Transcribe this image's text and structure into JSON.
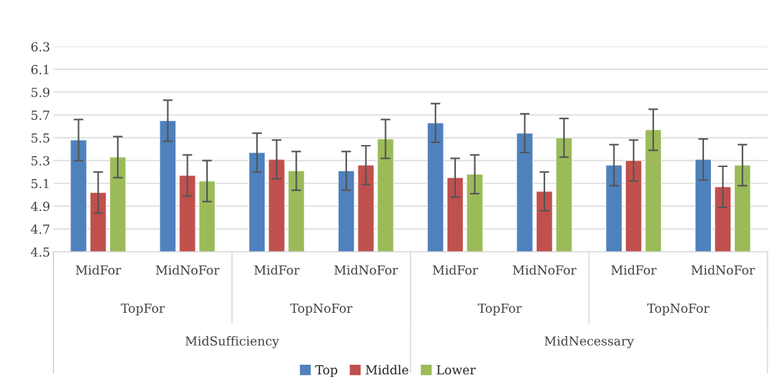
{
  "chart_data": {
    "type": "bar",
    "categories": [
      "MidFor",
      "MidNoFor",
      "MidFor",
      "MidNoFor",
      "MidFor",
      "MidNoFor",
      "MidFor",
      "MidNoFor"
    ],
    "series": [
      {
        "name": "Top",
        "color": "#4f81bd",
        "values": [
          5.48,
          5.65,
          5.37,
          5.21,
          5.63,
          5.54,
          5.26,
          5.31
        ],
        "errors": [
          0.18,
          0.18,
          0.17,
          0.17,
          0.17,
          0.17,
          0.18,
          0.18
        ]
      },
      {
        "name": "Middle",
        "color": "#c0504d",
        "values": [
          5.02,
          5.17,
          5.31,
          5.26,
          5.15,
          5.03,
          5.3,
          5.07
        ],
        "errors": [
          0.18,
          0.18,
          0.17,
          0.17,
          0.17,
          0.17,
          0.18,
          0.18
        ]
      },
      {
        "name": "Lower",
        "color": "#9bbb59",
        "values": [
          5.33,
          5.12,
          5.21,
          5.49,
          5.18,
          5.5,
          5.57,
          5.26
        ],
        "errors": [
          0.18,
          0.18,
          0.17,
          0.17,
          0.17,
          0.17,
          0.18,
          0.18
        ]
      }
    ],
    "annotations": [
      "TopFor",
      "TopNoFor",
      "TopFor",
      "TopNoFor",
      "MidSufficiency",
      "MidNecessary"
    ],
    "ylim": [
      4.5,
      6.3
    ],
    "yticks": [
      4.5,
      4.7,
      4.9,
      5.1,
      5.3,
      5.5,
      5.7,
      5.9,
      6.1,
      6.3
    ],
    "grid": "y",
    "legend": "bottom"
  }
}
